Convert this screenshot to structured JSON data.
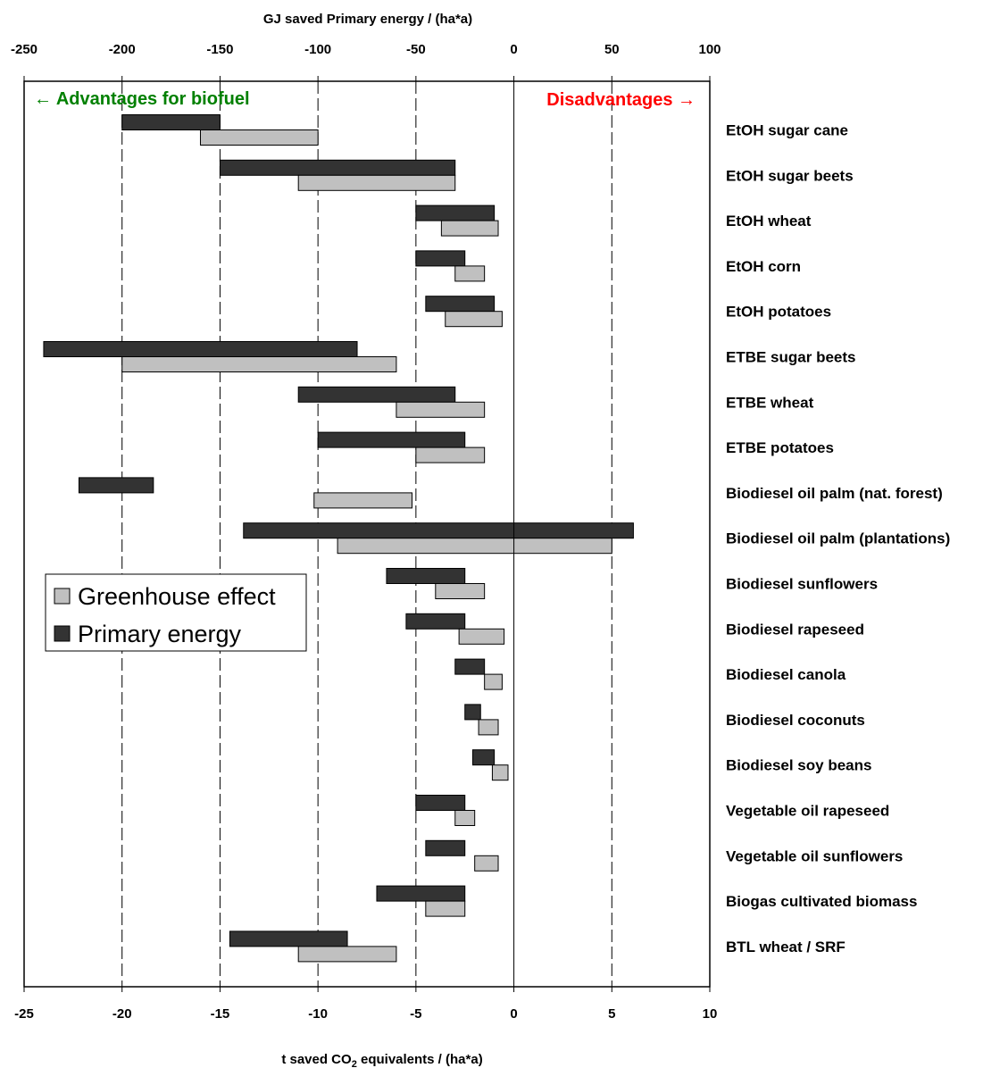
{
  "chart_data": {
    "type": "bar",
    "subtype": "floating-range-horizontal",
    "top_axis": {
      "label": "GJ saved Primary energy / (ha*a)",
      "range": [
        -250,
        100
      ],
      "ticks": [
        -250,
        -200,
        -150,
        -100,
        -50,
        0,
        50,
        100
      ]
    },
    "bottom_axis": {
      "label_main": "t saved CO",
      "label_sub": "2",
      "label_rest": " equivalents / (ha*a)",
      "range": [
        -25,
        10
      ],
      "ticks": [
        -25,
        -20,
        -15,
        -10,
        -5,
        0,
        5,
        10
      ]
    },
    "grid": "vertical dashed lines at each tick",
    "annotations": {
      "left": "← Advantages for biofuel",
      "right": "Disadvantages →",
      "left_color": "#008000",
      "right_color": "#ff0000"
    },
    "legend": {
      "placement": "left-middle",
      "items": [
        {
          "name": "Greenhouse effect",
          "color": "#c0c0c0"
        },
        {
          "name": "Primary energy",
          "color": "#333333"
        }
      ]
    },
    "series": [
      {
        "name": "Primary energy",
        "axis": "top",
        "color": "#333333"
      },
      {
        "name": "Greenhouse effect",
        "axis": "bottom",
        "color": "#c0c0c0"
      }
    ],
    "categories": [
      {
        "label": "EtOH sugar cane",
        "primary_energy": [
          -200,
          -150
        ],
        "greenhouse_effect": [
          -16,
          -10
        ]
      },
      {
        "label": "EtOH sugar beets",
        "primary_energy": [
          -150,
          -30
        ],
        "greenhouse_effect": [
          -11,
          -3
        ]
      },
      {
        "label": "EtOH wheat",
        "primary_energy": [
          -50,
          -10
        ],
        "greenhouse_effect": [
          -3.7,
          -0.8
        ]
      },
      {
        "label": "EtOH corn",
        "primary_energy": [
          -50,
          -25
        ],
        "greenhouse_effect": [
          -3,
          -1.5
        ]
      },
      {
        "label": "EtOH potatoes",
        "primary_energy": [
          -45,
          -10
        ],
        "greenhouse_effect": [
          -3.5,
          -0.6
        ]
      },
      {
        "label": "ETBE sugar beets",
        "primary_energy": [
          -240,
          -80
        ],
        "greenhouse_effect": [
          -20,
          -6
        ]
      },
      {
        "label": "ETBE wheat",
        "primary_energy": [
          -110,
          -30
        ],
        "greenhouse_effect": [
          -6,
          -1.5
        ]
      },
      {
        "label": "ETBE potatoes",
        "primary_energy": [
          -100,
          -25
        ],
        "greenhouse_effect": [
          -5,
          -1.5
        ]
      },
      {
        "label": "Biodiesel oil palm (nat. forest)",
        "primary_energy": [
          -222,
          -184
        ],
        "greenhouse_effect": [
          -10.2,
          -5.2
        ]
      },
      {
        "label": "Biodiesel oil palm (plantations)",
        "primary_energy": [
          -138,
          61
        ],
        "greenhouse_effect": [
          -9,
          5
        ]
      },
      {
        "label": "Biodiesel sunflowers",
        "primary_energy": [
          -65,
          -25
        ],
        "greenhouse_effect": [
          -4,
          -1.5
        ]
      },
      {
        "label": "Biodiesel rapeseed",
        "primary_energy": [
          -55,
          -25
        ],
        "greenhouse_effect": [
          -2.8,
          -0.5
        ]
      },
      {
        "label": "Biodiesel canola",
        "primary_energy": [
          -30,
          -15
        ],
        "greenhouse_effect": [
          -1.5,
          -0.6
        ]
      },
      {
        "label": "Biodiesel coconuts",
        "primary_energy": [
          -25,
          -17
        ],
        "greenhouse_effect": [
          -1.8,
          -0.8
        ]
      },
      {
        "label": "Biodiesel soy beans",
        "primary_energy": [
          -21,
          -10
        ],
        "greenhouse_effect": [
          -1.1,
          -0.3
        ]
      },
      {
        "label": "Vegetable oil rapeseed",
        "primary_energy": [
          -50,
          -25
        ],
        "greenhouse_effect": [
          -3,
          -2
        ]
      },
      {
        "label": "Vegetable oil sunflowers",
        "primary_energy": [
          -45,
          -25
        ],
        "greenhouse_effect": [
          -2,
          -0.8
        ]
      },
      {
        "label": "Biogas cultivated biomass",
        "primary_energy": [
          -70,
          -25
        ],
        "greenhouse_effect": [
          -4.5,
          -2.5
        ]
      },
      {
        "label": "BTL wheat / SRF",
        "primary_energy": [
          -145,
          -85
        ],
        "greenhouse_effect": [
          -11,
          -6
        ]
      }
    ]
  }
}
